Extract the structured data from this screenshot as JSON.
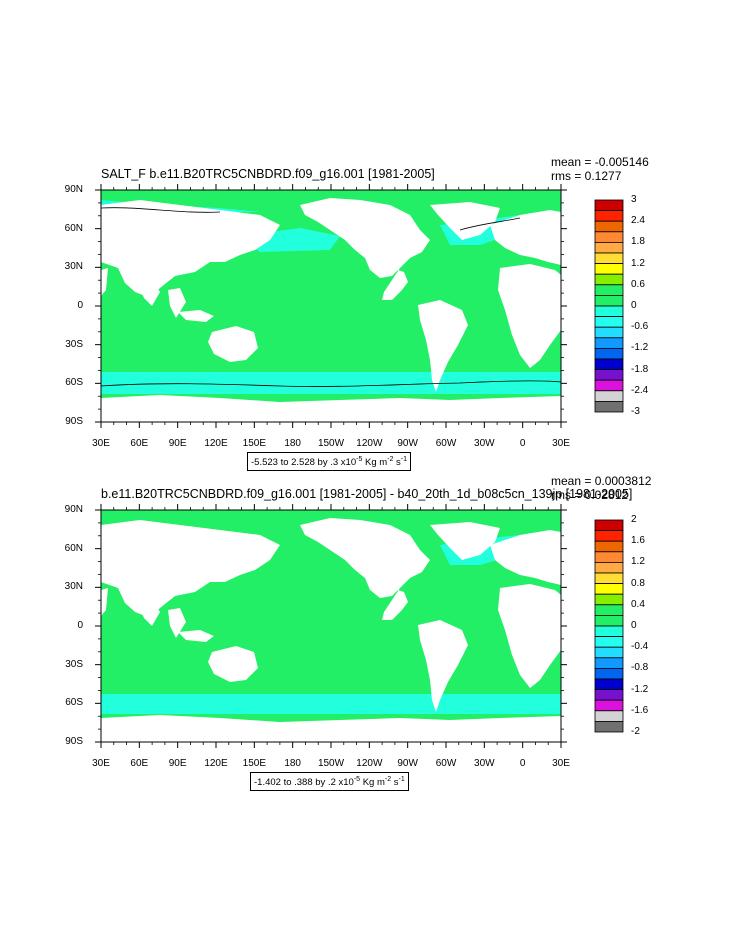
{
  "colors": {
    "ocean_zero": "#22ee66",
    "ocean_light_neg": "#22ffdd",
    "land": "#ffffff",
    "contour": "#000000"
  },
  "panel1": {
    "title": "SALT_F b.e11.B20TRC5CNBDRD.f09_g16.001 [1981-2005]",
    "mean": "mean = -0.005146",
    "rms": "rms = 0.1277",
    "range_main": "-5.523 to 2.528 by .3 x10",
    "range_exp": "-5",
    "range_unit": " Kg m",
    "range_exp2": "-2",
    "range_unit2": " s",
    "range_exp3": "-1",
    "colorbar_labels": [
      "3",
      "2.4",
      "1.8",
      "1.2",
      "0.6",
      "0",
      "-0.6",
      "-1.2",
      "-1.8",
      "-2.4",
      "-3"
    ],
    "colorbar_colors": [
      "#cc0000",
      "#ff2200",
      "#ee6600",
      "#ff8833",
      "#ffaa44",
      "#ffdd33",
      "#ffff00",
      "#88ee00",
      "#22ee66",
      "#22ee66",
      "#22ffdd",
      "#22ffee",
      "#22ddff",
      "#1199ff",
      "#0066ee",
      "#0000cc",
      "#7711cc",
      "#dd11dd",
      "#d3d3d3",
      "#707070"
    ]
  },
  "panel2": {
    "title": "b.e11.B20TRC5CNBDRD.f09_g16.001 [1981-2005] - b40_20th_1d_b08c5cn_139jp [1981-2005]",
    "mean": "mean = 0.0003812",
    "rms": "rms = 0.02812",
    "range_main": "-1.402 to .388 by .2 x10",
    "range_exp": "-5",
    "range_unit": " Kg m",
    "range_exp2": "-2",
    "range_unit2": " s",
    "range_exp3": "-1",
    "colorbar_labels": [
      "2",
      "1.6",
      "1.2",
      "0.8",
      "0.4",
      "0",
      "-0.4",
      "-0.8",
      "-1.2",
      "-1.6",
      "-2"
    ],
    "colorbar_colors": [
      "#cc0000",
      "#ff2200",
      "#ee6600",
      "#ff8833",
      "#ffaa44",
      "#ffdd33",
      "#ffff00",
      "#88ee00",
      "#22ee66",
      "#22ee66",
      "#22ffdd",
      "#22ffee",
      "#22ddff",
      "#1199ff",
      "#0066ee",
      "#0000cc",
      "#7711cc",
      "#dd11dd",
      "#d3d3d3",
      "#707070"
    ]
  },
  "axes": {
    "lat_labels": [
      "90N",
      "60N",
      "30N",
      "0",
      "30S",
      "60S",
      "90S"
    ],
    "lon_labels": [
      "30E",
      "60E",
      "90E",
      "120E",
      "150E",
      "180",
      "150W",
      "120W",
      "90W",
      "60W",
      "30W",
      "0",
      "30E"
    ]
  }
}
